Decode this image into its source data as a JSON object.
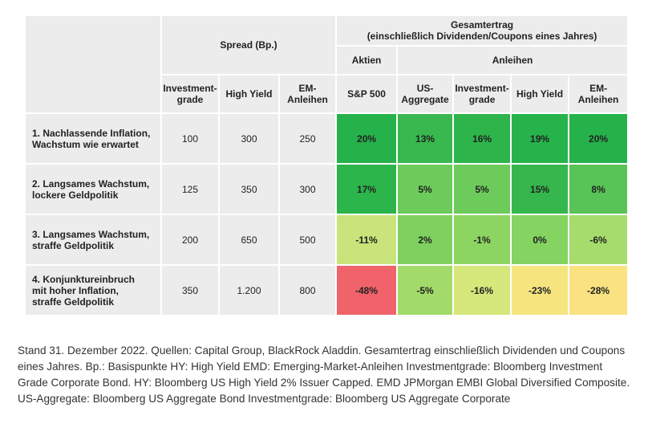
{
  "table": {
    "header": {
      "spread": "Spread (Bp.)",
      "total": [
        "Gesamtertrag",
        "(einschließlich Dividenden/Coupons eines Jahres)"
      ],
      "stocks": "Aktien",
      "bonds": "Anleihen",
      "spread_columns": [
        [
          "Investment-",
          "grade"
        ],
        [
          "High Yield"
        ],
        [
          "EM-",
          "Anleihen"
        ]
      ],
      "return_columns": [
        [
          "S&P 500"
        ],
        [
          "US-",
          "Aggregate"
        ],
        [
          "Investment-",
          "grade"
        ],
        [
          "High Yield"
        ],
        [
          "EM-",
          "Anleihen"
        ]
      ]
    },
    "rows": [
      {
        "label": [
          "1. Nachlassende Inflation,",
          "Wachstum wie erwartet"
        ],
        "spread": [
          "100",
          "300",
          "250"
        ],
        "returns": [
          "20%",
          "13%",
          "16%",
          "19%",
          "20%"
        ],
        "colors": [
          "#25b24b",
          "#38b84e",
          "#2db54b",
          "#27b34b",
          "#25b24b"
        ]
      },
      {
        "label": [
          "2. Langsames Wachstum,",
          "lockere Geldpolitik"
        ],
        "spread": [
          "125",
          "350",
          "300"
        ],
        "returns": [
          "17%",
          "5%",
          "5%",
          "15%",
          "8%"
        ],
        "colors": [
          "#2cb54b",
          "#6dcb5b",
          "#6dcb5b",
          "#35b74d",
          "#58c356"
        ]
      },
      {
        "label": [
          "3. Langsames Wachstum,",
          "straffe Geldpolitik"
        ],
        "spread": [
          "200",
          "650",
          "500"
        ],
        "returns": [
          "-11%",
          "2%",
          "-1%",
          "0%",
          "-6%"
        ],
        "colors": [
          "#c8e47a",
          "#7ed15f",
          "#8cd562",
          "#85d361",
          "#a6dc6b"
        ]
      },
      {
        "label": [
          "4. Konjunktureinbruch",
          "mit hoher Inflation,",
          "straffe Geldpolitik"
        ],
        "spread": [
          "350",
          "1.200",
          "800"
        ],
        "returns": [
          "-48%",
          "-5%",
          "-16%",
          "-23%",
          "-28%"
        ],
        "colors": [
          "#f0636a",
          "#a2db6a",
          "#d6e77b",
          "#f6e47f",
          "#f9e27f"
        ]
      }
    ]
  },
  "note": "Stand 31. Dezember 2022. Quellen: Capital Group, BlackRock Aladdin. Gesamtertrag einschließlich Dividenden und Coupons eines Jahres. Bp.: Basispunkte HY: High Yield EMD: Emerging-Market-Anleihen Investmentgrade: Bloomberg Investment Grade Corporate Bond. HY: Bloomberg US High Yield 2% Issuer Capped. EMD JPMorgan EMBI Global Diversified Composite. US-Aggregate: Bloomberg US Aggregate Bond Investmentgrade: Bloomberg US Aggregate Corporate"
}
